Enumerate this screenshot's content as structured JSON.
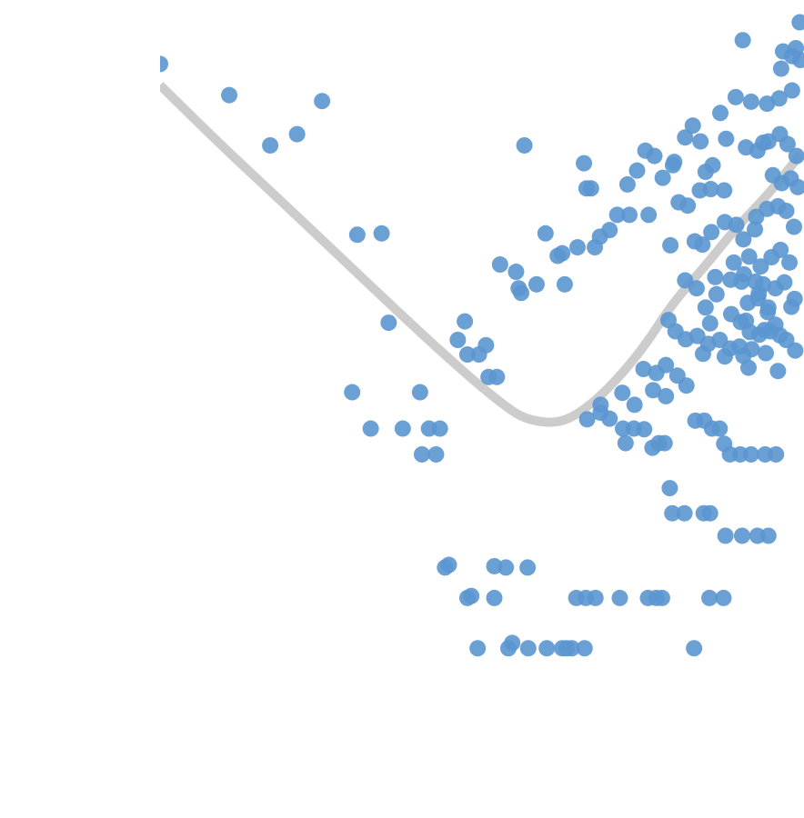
{
  "chart_data": {
    "type": "scatter",
    "title": "",
    "xlabel": "",
    "ylabel": "",
    "grid": false,
    "legend": "none",
    "colors": {
      "points": "#5b96d0",
      "trend": "#cccccc",
      "background": "#ffffff"
    },
    "xlim": [
      0,
      100
    ],
    "ylim": [
      0,
      100
    ],
    "points": [
      [
        0.0,
        91.7
      ],
      [
        10.8,
        87.0
      ],
      [
        17.2,
        79.4
      ],
      [
        21.4,
        81.1
      ],
      [
        25.3,
        86.1
      ],
      [
        30.8,
        65.9
      ],
      [
        34.6,
        66.1
      ],
      [
        30.0,
        42.1
      ],
      [
        35.7,
        52.6
      ],
      [
        40.6,
        42.1
      ],
      [
        32.9,
        36.6
      ],
      [
        37.9,
        36.6
      ],
      [
        42.0,
        36.6
      ],
      [
        43.7,
        36.6
      ],
      [
        40.9,
        32.7
      ],
      [
        43.1,
        32.7
      ],
      [
        47.6,
        52.8
      ],
      [
        46.5,
        50.0
      ],
      [
        48.0,
        47.8
      ],
      [
        50.9,
        49.2
      ],
      [
        49.8,
        47.8
      ],
      [
        51.3,
        44.4
      ],
      [
        52.6,
        44.4
      ],
      [
        53.1,
        61.4
      ],
      [
        55.6,
        60.3
      ],
      [
        56.0,
        57.8
      ],
      [
        56.4,
        57.1
      ],
      [
        58.8,
        58.4
      ],
      [
        56.9,
        79.4
      ],
      [
        60.2,
        66.1
      ],
      [
        62.1,
        62.7
      ],
      [
        63.2,
        58.4
      ],
      [
        62.8,
        63.1
      ],
      [
        65.2,
        64.0
      ],
      [
        66.2,
        76.7
      ],
      [
        66.6,
        72.9
      ],
      [
        67.3,
        72.9
      ],
      [
        67.9,
        64.0
      ],
      [
        68.7,
        65.6
      ],
      [
        70.2,
        66.6
      ],
      [
        71.4,
        68.9
      ],
      [
        73.3,
        68.9
      ],
      [
        76.3,
        68.9
      ],
      [
        73.0,
        73.5
      ],
      [
        74.5,
        75.6
      ],
      [
        78.5,
        74.5
      ],
      [
        80.3,
        76.9
      ],
      [
        75.8,
        78.6
      ],
      [
        77.2,
        77.8
      ],
      [
        80.1,
        76.4
      ],
      [
        82.0,
        80.6
      ],
      [
        83.2,
        82.4
      ],
      [
        84.4,
        80.0
      ],
      [
        85.2,
        75.4
      ],
      [
        86.3,
        76.4
      ],
      [
        81.0,
        70.8
      ],
      [
        82.4,
        70.3
      ],
      [
        84.3,
        72.6
      ],
      [
        86.0,
        72.8
      ],
      [
        88.1,
        72.6
      ],
      [
        79.7,
        64.3
      ],
      [
        83.5,
        64.9
      ],
      [
        84.7,
        64.4
      ],
      [
        82.0,
        59.0
      ],
      [
        83.8,
        57.8
      ],
      [
        86.7,
        59.5
      ],
      [
        89.1,
        59.1
      ],
      [
        90.8,
        58.8
      ],
      [
        85.2,
        54.9
      ],
      [
        86.9,
        56.9
      ],
      [
        89.2,
        53.9
      ],
      [
        91.5,
        52.9
      ],
      [
        92.4,
        48.6
      ],
      [
        94.4,
        51.5
      ],
      [
        96.8,
        50.7
      ],
      [
        99.2,
        48.4
      ],
      [
        93.4,
        56.3
      ],
      [
        94.9,
        54.2
      ],
      [
        96.1,
        52.3
      ],
      [
        98.6,
        55.0
      ],
      [
        92.0,
        62.6
      ],
      [
        93.8,
        61.1
      ],
      [
        95.5,
        62.5
      ],
      [
        96.9,
        63.6
      ],
      [
        98.3,
        61.7
      ],
      [
        93.1,
        68.6
      ],
      [
        94.8,
        69.8
      ],
      [
        96.5,
        70.2
      ],
      [
        97.8,
        69.5
      ],
      [
        99.0,
        67.1
      ],
      [
        88.4,
        80.4
      ],
      [
        91.5,
        79.1
      ],
      [
        93.3,
        78.6
      ],
      [
        95.0,
        80.0
      ],
      [
        96.8,
        81.1
      ],
      [
        98.0,
        79.6
      ],
      [
        99.4,
        77.8
      ],
      [
        87.5,
        84.3
      ],
      [
        89.9,
        86.7
      ],
      [
        92.3,
        86.0
      ],
      [
        94.8,
        85.7
      ],
      [
        96.7,
        86.5
      ],
      [
        98.7,
        87.7
      ],
      [
        91.0,
        95.3
      ],
      [
        97.0,
        91.0
      ],
      [
        99.3,
        94.1
      ],
      [
        100.0,
        92.3
      ],
      [
        99.9,
        98.0
      ],
      [
        98.7,
        92.9
      ],
      [
        97.3,
        93.6
      ],
      [
        94.2,
        79.8
      ],
      [
        95.7,
        74.9
      ],
      [
        97.1,
        73.7
      ],
      [
        98.5,
        74.4
      ],
      [
        99.6,
        73.1
      ],
      [
        86.1,
        66.3
      ],
      [
        88.2,
        67.8
      ],
      [
        90.0,
        67.4
      ],
      [
        91.1,
        65.2
      ],
      [
        92.9,
        66.7
      ],
      [
        89.6,
        61.7
      ],
      [
        91.2,
        59.9
      ],
      [
        93.0,
        58.8
      ],
      [
        94.2,
        58.4
      ],
      [
        96.1,
        57.8
      ],
      [
        91.8,
        55.6
      ],
      [
        93.5,
        57.0
      ],
      [
        95.0,
        54.9
      ],
      [
        97.5,
        58.7
      ],
      [
        99.1,
        56.2
      ],
      [
        90.7,
        52.7
      ],
      [
        92.1,
        51.2
      ],
      [
        93.6,
        50.8
      ],
      [
        95.3,
        51.3
      ],
      [
        97.8,
        50.0
      ],
      [
        88.2,
        47.5
      ],
      [
        90.5,
        49.0
      ],
      [
        91.9,
        45.8
      ],
      [
        94.6,
        48.0
      ],
      [
        96.5,
        45.3
      ],
      [
        83.9,
        50.6
      ],
      [
        85.6,
        49.4
      ],
      [
        87.4,
        50.0
      ],
      [
        89.0,
        48.7
      ],
      [
        91.1,
        47.6
      ],
      [
        79.4,
        53.0
      ],
      [
        80.5,
        51.3
      ],
      [
        82.1,
        50.1
      ],
      [
        84.8,
        47.9
      ],
      [
        85.9,
        52.5
      ],
      [
        75.5,
        45.6
      ],
      [
        77.5,
        45.0
      ],
      [
        79.0,
        46.2
      ],
      [
        80.8,
        44.6
      ],
      [
        82.2,
        43.1
      ],
      [
        68.8,
        40.2
      ],
      [
        72.2,
        42.0
      ],
      [
        74.1,
        40.2
      ],
      [
        77.0,
        42.4
      ],
      [
        79.0,
        41.5
      ],
      [
        66.7,
        38.0
      ],
      [
        68.8,
        39.0
      ],
      [
        70.2,
        38.1
      ],
      [
        72.3,
        36.6
      ],
      [
        74.0,
        36.6
      ],
      [
        75.6,
        36.5
      ],
      [
        72.7,
        34.4
      ],
      [
        76.9,
        33.7
      ],
      [
        77.9,
        34.4
      ],
      [
        78.8,
        34.4
      ],
      [
        83.6,
        37.8
      ],
      [
        85.0,
        37.8
      ],
      [
        86.2,
        36.6
      ],
      [
        87.4,
        36.6
      ],
      [
        88.1,
        34.3
      ],
      [
        89.0,
        32.7
      ],
      [
        90.6,
        32.7
      ],
      [
        92.3,
        32.7
      ],
      [
        94.5,
        32.7
      ],
      [
        96.2,
        32.7
      ],
      [
        79.6,
        27.6
      ],
      [
        80.0,
        23.8
      ],
      [
        81.9,
        23.8
      ],
      [
        84.9,
        23.8
      ],
      [
        85.9,
        23.8
      ],
      [
        88.3,
        20.4
      ],
      [
        90.9,
        20.4
      ],
      [
        93.3,
        20.4
      ],
      [
        95.0,
        20.4
      ],
      [
        44.5,
        15.6
      ],
      [
        45.1,
        16.0
      ],
      [
        54.0,
        15.6
      ],
      [
        52.2,
        15.8
      ],
      [
        57.4,
        15.6
      ],
      [
        65.0,
        11.0
      ],
      [
        66.5,
        11.0
      ],
      [
        68.0,
        11.0
      ],
      [
        71.8,
        11.0
      ],
      [
        76.2,
        11.0
      ],
      [
        77.5,
        11.0
      ],
      [
        78.4,
        11.0
      ],
      [
        85.8,
        11.0
      ],
      [
        88.0,
        11.0
      ],
      [
        48.0,
        11.0
      ],
      [
        48.6,
        11.3
      ],
      [
        52.2,
        11.0
      ],
      [
        49.6,
        3.4
      ],
      [
        60.4,
        3.4
      ],
      [
        62.8,
        3.4
      ],
      [
        63.5,
        3.4
      ],
      [
        64.3,
        3.4
      ],
      [
        66.3,
        3.4
      ],
      [
        57.5,
        3.4
      ],
      [
        83.4,
        3.4
      ],
      [
        55.0,
        4.2
      ],
      [
        54.4,
        3.4
      ]
    ],
    "trend": [
      [
        0.0,
        88.5
      ],
      [
        10.0,
        79.0
      ],
      [
        20.0,
        70.0
      ],
      [
        30.0,
        60.8
      ],
      [
        40.0,
        51.7
      ],
      [
        45.0,
        47.3
      ],
      [
        50.0,
        43.0
      ],
      [
        55.0,
        39.2
      ],
      [
        57.0,
        38.2
      ],
      [
        59.0,
        37.7
      ],
      [
        61.0,
        37.5
      ],
      [
        63.0,
        37.8
      ],
      [
        65.0,
        38.7
      ],
      [
        68.0,
        40.8
      ],
      [
        72.0,
        44.7
      ],
      [
        76.0,
        49.5
      ],
      [
        80.0,
        55.5
      ],
      [
        85.0,
        61.0
      ],
      [
        90.0,
        67.0
      ],
      [
        95.0,
        72.0
      ],
      [
        100.0,
        78.0
      ]
    ]
  }
}
